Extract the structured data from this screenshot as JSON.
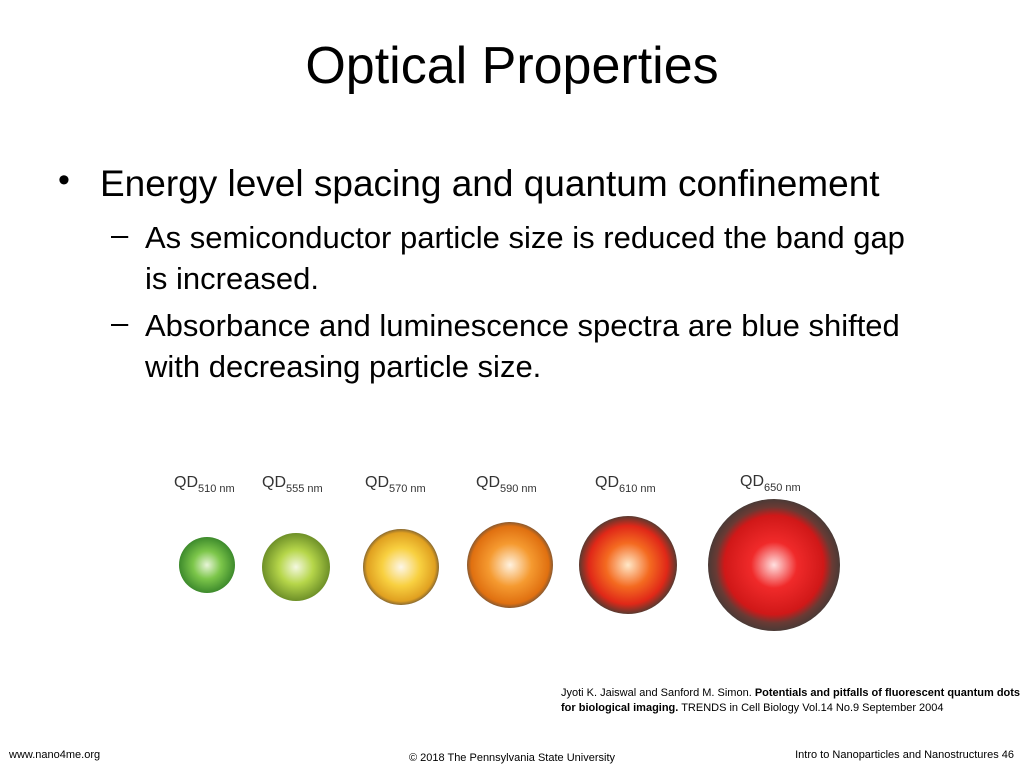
{
  "slide": {
    "title": "Optical Properties",
    "bullets": [
      {
        "text": "Energy level spacing and quantum confinement",
        "sub": [
          "As semiconductor particle size is reduced the band gap is increased.",
          "Absorbance and luminescence spectra are blue shifted with decreasing particle size."
        ]
      }
    ],
    "figure": {
      "dots": [
        {
          "label": "QD",
          "sub": "510 nm"
        },
        {
          "label": "QD",
          "sub": "555 nm"
        },
        {
          "label": "QD",
          "sub": "570 nm"
        },
        {
          "label": "QD",
          "sub": "590 nm"
        },
        {
          "label": "QD",
          "sub": "610 nm"
        },
        {
          "label": "QD",
          "sub": "650 nm"
        }
      ]
    },
    "citation": {
      "authors": "Jyoti K. Jaiswal and Sanford M. Simon.",
      "title": "Potentials and pitfalls of fluorescent quantum dots for biological imaging.",
      "source": "TRENDS in Cell Biology Vol.14 No.9 September 2004"
    },
    "footer": {
      "left": "www.nano4me.org",
      "center": "© 2018 The Pennsylvania State University",
      "right": "Intro to Nanoparticles and Nanostructures 46"
    }
  }
}
